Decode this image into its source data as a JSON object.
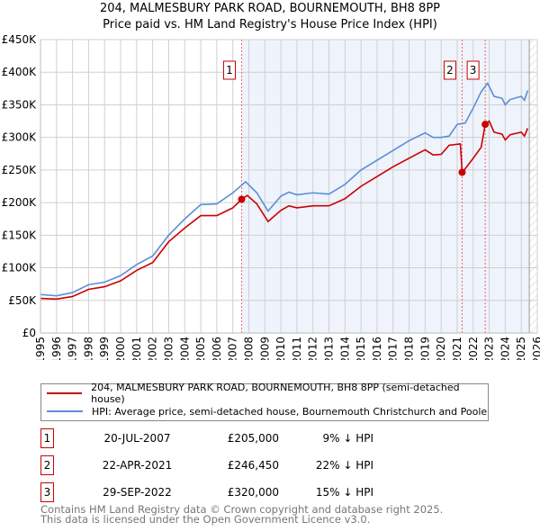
{
  "chart_data": {
    "type": "line",
    "title": "204, MALMESBURY PARK ROAD, BOURNEMOUTH, BH8 8PP",
    "subtitle": "Price paid vs. HM Land Registry's House Price Index (HPI)",
    "xlim": [
      1995,
      2026
    ],
    "ylim": [
      0,
      450000
    ],
    "x_ticks": [
      "1995",
      "1996",
      "1997",
      "1998",
      "1999",
      "2000",
      "2001",
      "2002",
      "2003",
      "2004",
      "2005",
      "2006",
      "2007",
      "2008",
      "2009",
      "2010",
      "2011",
      "2012",
      "2013",
      "2014",
      "2015",
      "2016",
      "2017",
      "2018",
      "2019",
      "2020",
      "2021",
      "2022",
      "2023",
      "2024",
      "2025",
      "2026"
    ],
    "y_ticks": [
      {
        "v": 0,
        "label": "£0"
      },
      {
        "v": 50000,
        "label": "£50K"
      },
      {
        "v": 100000,
        "label": "£100K"
      },
      {
        "v": 150000,
        "label": "£150K"
      },
      {
        "v": 200000,
        "label": "£200K"
      },
      {
        "v": 250000,
        "label": "£250K"
      },
      {
        "v": 300000,
        "label": "£300K"
      },
      {
        "v": 350000,
        "label": "£350K"
      },
      {
        "v": 400000,
        "label": "£400K"
      },
      {
        "v": 450000,
        "label": "£450K"
      }
    ],
    "grid": true,
    "series": [
      {
        "name": "204, MALMESBURY PARK ROAD, BOURNEMOUTH, BH8 8PP (semi-detached house)",
        "color": "#cc0000",
        "points": [
          [
            1995,
            53000
          ],
          [
            1996,
            52000
          ],
          [
            1997,
            56000
          ],
          [
            1998,
            67000
          ],
          [
            1999,
            71000
          ],
          [
            2000,
            80000
          ],
          [
            2001,
            96000
          ],
          [
            2002,
            108000
          ],
          [
            2003,
            140000
          ],
          [
            2004,
            161000
          ],
          [
            2005,
            180000
          ],
          [
            2006,
            180000
          ],
          [
            2007,
            192000
          ],
          [
            2007.55,
            205000
          ],
          [
            2007.9,
            211000
          ],
          [
            2008.5,
            198000
          ],
          [
            2009.2,
            171000
          ],
          [
            2010,
            188000
          ],
          [
            2010.5,
            195000
          ],
          [
            2011,
            192000
          ],
          [
            2012,
            195000
          ],
          [
            2013,
            195000
          ],
          [
            2014,
            206000
          ],
          [
            2015,
            225000
          ],
          [
            2016,
            240000
          ],
          [
            2017,
            255000
          ],
          [
            2018,
            268000
          ],
          [
            2019,
            281000
          ],
          [
            2019.5,
            273000
          ],
          [
            2020,
            274000
          ],
          [
            2020.5,
            288000
          ],
          [
            2021.2,
            290000
          ],
          [
            2021.31,
            246450
          ],
          [
            2021.6,
            255000
          ],
          [
            2022,
            268000
          ],
          [
            2022.5,
            285000
          ],
          [
            2022.75,
            320000
          ],
          [
            2023,
            325000
          ],
          [
            2023.3,
            308000
          ],
          [
            2023.8,
            305000
          ],
          [
            2024,
            296000
          ],
          [
            2024.3,
            304000
          ],
          [
            2025,
            308000
          ],
          [
            2025.2,
            302000
          ],
          [
            2025.4,
            314000
          ]
        ]
      },
      {
        "name": "HPI: Average price, semi-detached house, Bournemouth Christchurch and Poole",
        "color": "#5b8fd4",
        "points": [
          [
            1995,
            59000
          ],
          [
            1996,
            57000
          ],
          [
            1997,
            62000
          ],
          [
            1998,
            74000
          ],
          [
            1999,
            78000
          ],
          [
            2000,
            88000
          ],
          [
            2001,
            105000
          ],
          [
            2002,
            118000
          ],
          [
            2003,
            150000
          ],
          [
            2004,
            175000
          ],
          [
            2005,
            197000
          ],
          [
            2006,
            198000
          ],
          [
            2007,
            215000
          ],
          [
            2007.8,
            232000
          ],
          [
            2008.5,
            215000
          ],
          [
            2009.2,
            187000
          ],
          [
            2010,
            210000
          ],
          [
            2010.5,
            216000
          ],
          [
            2011,
            212000
          ],
          [
            2012,
            215000
          ],
          [
            2013,
            213000
          ],
          [
            2014,
            228000
          ],
          [
            2015,
            250000
          ],
          [
            2016,
            265000
          ],
          [
            2017,
            280000
          ],
          [
            2018,
            295000
          ],
          [
            2019,
            307000
          ],
          [
            2019.5,
            300000
          ],
          [
            2020,
            300000
          ],
          [
            2020.5,
            302000
          ],
          [
            2021,
            320000
          ],
          [
            2021.5,
            322000
          ],
          [
            2022,
            345000
          ],
          [
            2022.5,
            370000
          ],
          [
            2022.9,
            383000
          ],
          [
            2023.3,
            363000
          ],
          [
            2023.8,
            360000
          ],
          [
            2024,
            350000
          ],
          [
            2024.3,
            358000
          ],
          [
            2025,
            363000
          ],
          [
            2025.2,
            357000
          ],
          [
            2025.4,
            372000
          ]
        ]
      }
    ],
    "sales": [
      {
        "id": "1",
        "x": 2007.55,
        "y": 205000
      },
      {
        "id": "2",
        "x": 2021.31,
        "y": 246450
      },
      {
        "id": "3",
        "x": 2022.75,
        "y": 320000
      }
    ],
    "shaded_from": 2007.55,
    "hatched_from": 2025.5,
    "legend_placement": "bottom"
  },
  "legend": {
    "red": "204, MALMESBURY PARK ROAD, BOURNEMOUTH, BH8 8PP (semi-detached house)",
    "blue": "HPI: Average price, semi-detached house, Bournemouth Christchurch and Poole"
  },
  "transactions": [
    {
      "id": "1",
      "date": "20-JUL-2007",
      "price": "£205,000",
      "hpi": "9% ↓ HPI"
    },
    {
      "id": "2",
      "date": "22-APR-2021",
      "price": "£246,450",
      "hpi": "22% ↓ HPI"
    },
    {
      "id": "3",
      "date": "29-SEP-2022",
      "price": "£320,000",
      "hpi": "15% ↓ HPI"
    }
  ],
  "footer": [
    "Contains HM Land Registry data © Crown copyright and database right 2025.",
    "This data is licensed under the Open Government Licence v3.0."
  ]
}
